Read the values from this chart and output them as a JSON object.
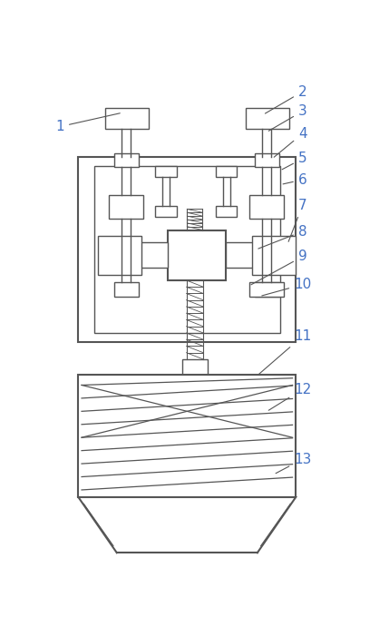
{
  "figure_width": 4.29,
  "figure_height": 7.01,
  "dpi": 100,
  "bg_color": "#ffffff",
  "line_color": "#555555",
  "line_width": 1.0,
  "label_color": "#4472c4",
  "label_fs": 11
}
